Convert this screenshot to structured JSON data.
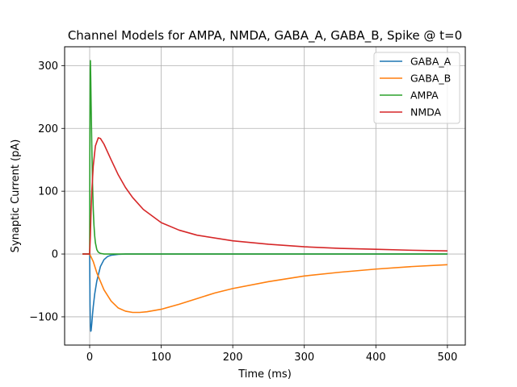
{
  "chart_data": {
    "type": "line",
    "title": "Channel Models for AMPA, NMDA, GABA_A, GABA_B, Spike @ t=0",
    "xlabel": "Time (ms)",
    "ylabel": "Synaptic Current (pA)",
    "xlim": [
      -35,
      525
    ],
    "ylim": [
      -145,
      330
    ],
    "xticks": [
      0,
      100,
      200,
      300,
      400,
      500
    ],
    "xtick_labels": [
      "0",
      "100",
      "200",
      "300",
      "400",
      "500"
    ],
    "yticks": [
      -100,
      0,
      100,
      200,
      300
    ],
    "ytick_labels": [
      "−100",
      "0",
      "100",
      "200",
      "300"
    ],
    "grid": true,
    "legend_position": "top-right",
    "series": [
      {
        "name": "GABA_A",
        "color": "#1f77b4",
        "x": [
          -10,
          -1,
          0,
          0.5,
          1,
          1.5,
          2,
          3,
          4,
          5,
          7,
          10,
          15,
          20,
          25,
          30,
          40,
          50,
          500
        ],
        "y": [
          0,
          0,
          0,
          -80,
          -115,
          -123,
          -122,
          -110,
          -96,
          -84,
          -64,
          -43,
          -20,
          -9,
          -4,
          -2,
          -0.5,
          0,
          0
        ]
      },
      {
        "name": "GABA_B",
        "color": "#ff7f0e",
        "x": [
          -10,
          -1,
          0,
          5,
          10,
          20,
          30,
          40,
          50,
          60,
          70,
          80,
          100,
          125,
          150,
          175,
          200,
          250,
          300,
          350,
          400,
          450,
          500
        ],
        "y": [
          0,
          0,
          0,
          -12,
          -30,
          -57,
          -75,
          -86,
          -91,
          -93,
          -93,
          -92,
          -88,
          -80,
          -71,
          -62,
          -55,
          -44,
          -35,
          -29,
          -24,
          -20,
          -17
        ]
      },
      {
        "name": "AMPA",
        "color": "#2ca02c",
        "x": [
          -10,
          -1,
          0,
          0.3,
          0.7,
          1,
          1.5,
          2,
          3,
          4,
          5,
          6,
          7,
          8,
          10,
          12,
          15,
          20,
          500
        ],
        "y": [
          0,
          0,
          0,
          200,
          295,
          308,
          280,
          240,
          170,
          112,
          72,
          46,
          29,
          18,
          7,
          3,
          1,
          0,
          0
        ]
      },
      {
        "name": "NMDA",
        "color": "#d62728",
        "x": [
          -10,
          -1,
          0,
          1,
          2,
          3,
          5,
          8,
          12,
          15,
          20,
          30,
          40,
          50,
          60,
          75,
          100,
          125,
          150,
          200,
          250,
          300,
          350,
          400,
          450,
          500
        ],
        "y": [
          0,
          0,
          0,
          30,
          70,
          100,
          140,
          172,
          185,
          184,
          175,
          150,
          126,
          106,
          90,
          71,
          50,
          38,
          30,
          21,
          15.5,
          11.5,
          9,
          7.5,
          6,
          5
        ]
      }
    ]
  }
}
